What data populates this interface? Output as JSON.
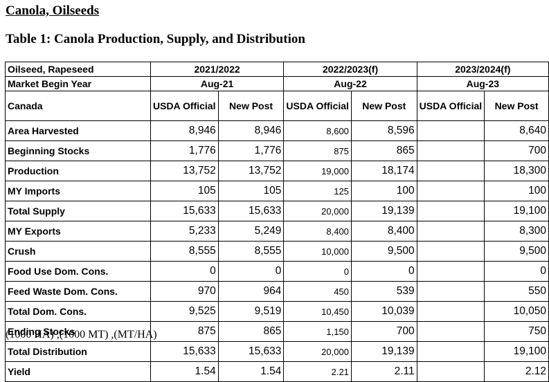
{
  "heading": "Canola, Oilseeds",
  "table_title": "Table 1: Canola Production, Supply, and Distribution",
  "header": {
    "commodity": "Oilseed, Rapeseed",
    "market_begin_label": "Market Begin Year",
    "country": "Canada",
    "years": [
      "2021/2022",
      "2022/2023(f)",
      "2023/2024(f)"
    ],
    "begin_months": [
      "Aug-21",
      "Aug-22",
      "Aug-23"
    ],
    "col_official": "USDA Official",
    "col_new": "New Post"
  },
  "rows": [
    {
      "label": "Area Harvested",
      "values": [
        "8,946",
        "8,946",
        "8,600",
        "8,596",
        "",
        "8,640"
      ]
    },
    {
      "label": "Beginning Stocks",
      "values": [
        "1,776",
        "1,776",
        "875",
        "865",
        "",
        "700"
      ]
    },
    {
      "label": "Production",
      "values": [
        "13,752",
        "13,752",
        "19,000",
        "18,174",
        "",
        "18,300"
      ]
    },
    {
      "label": "MY Imports",
      "values": [
        "105",
        "105",
        "125",
        "100",
        "",
        "100"
      ]
    },
    {
      "label": "Total Supply",
      "values": [
        "15,633",
        "15,633",
        "20,000",
        "19,139",
        "",
        "19,100"
      ]
    },
    {
      "label": "MY Exports",
      "values": [
        "5,233",
        "5,249",
        "8,400",
        "8,400",
        "",
        "8,300"
      ]
    },
    {
      "label": "Crush",
      "values": [
        "8,555",
        "8,555",
        "10,000",
        "9,500",
        "",
        "9,500"
      ]
    },
    {
      "label": "Food Use Dom. Cons.",
      "values": [
        "0",
        "0",
        "0",
        "0",
        "",
        "0"
      ]
    },
    {
      "label": "Feed Waste Dom. Cons.",
      "values": [
        "970",
        "964",
        "450",
        "539",
        "",
        "550"
      ]
    },
    {
      "label": "Total Dom. Cons.",
      "values": [
        "9,525",
        "9,519",
        "10,450",
        "10,039",
        "",
        "10,050"
      ]
    },
    {
      "label": "Ending Stocks",
      "values": [
        "875",
        "865",
        "1,150",
        "700",
        "",
        "750"
      ]
    },
    {
      "label": "Total Distribution",
      "values": [
        "15,633",
        "15,633",
        "20,000",
        "19,139",
        "",
        "19,100"
      ]
    },
    {
      "label": "Yield",
      "values": [
        "1.54",
        "1.54",
        "2.21",
        "2.11",
        "",
        "2.12"
      ]
    }
  ],
  "units_note": "(1000 HA) ,(1000 MT) ,(MT/HA)"
}
